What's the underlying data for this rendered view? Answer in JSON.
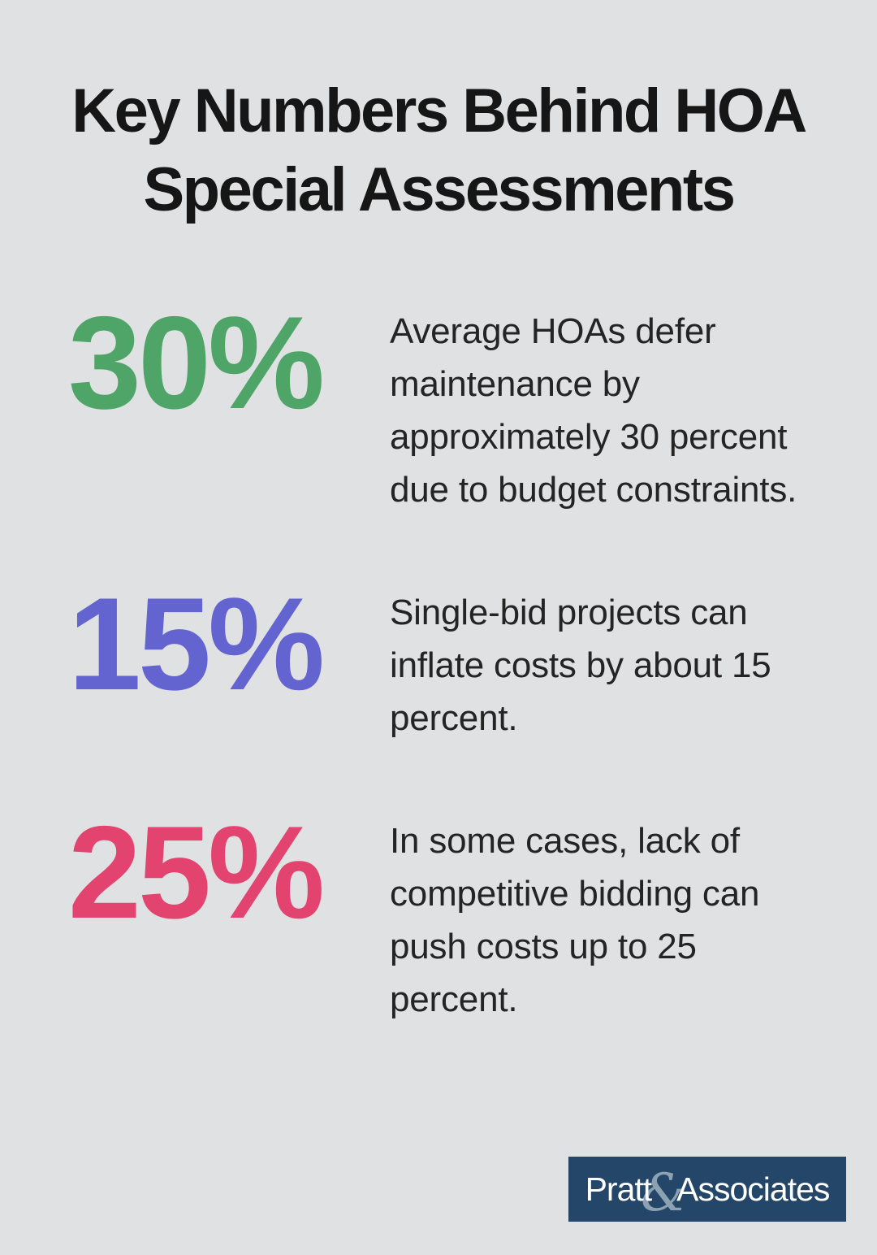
{
  "page": {
    "background": "#e0e1e2"
  },
  "title": {
    "line1": "Key Numbers Behind HOA",
    "line2": "Special Assessments",
    "color": "#161616"
  },
  "stats": [
    {
      "value": "30%",
      "color": "#4fa567",
      "description": "Average HOAs defer maintenance by approximately 30 percent due to budget constraints."
    },
    {
      "value": "15%",
      "color": "#6364cf",
      "description": "Single-bid projects can inflate costs by about 15 percent."
    },
    {
      "value": "25%",
      "color": "#e2436f",
      "description": "In some cases, lack of competitive bidding can push costs up to 25 percent."
    }
  ],
  "logo": {
    "name_left": "Pratt",
    "ampersand": "&",
    "name_right": "Associates",
    "background": "#234669",
    "text_color": "#ffffff"
  }
}
